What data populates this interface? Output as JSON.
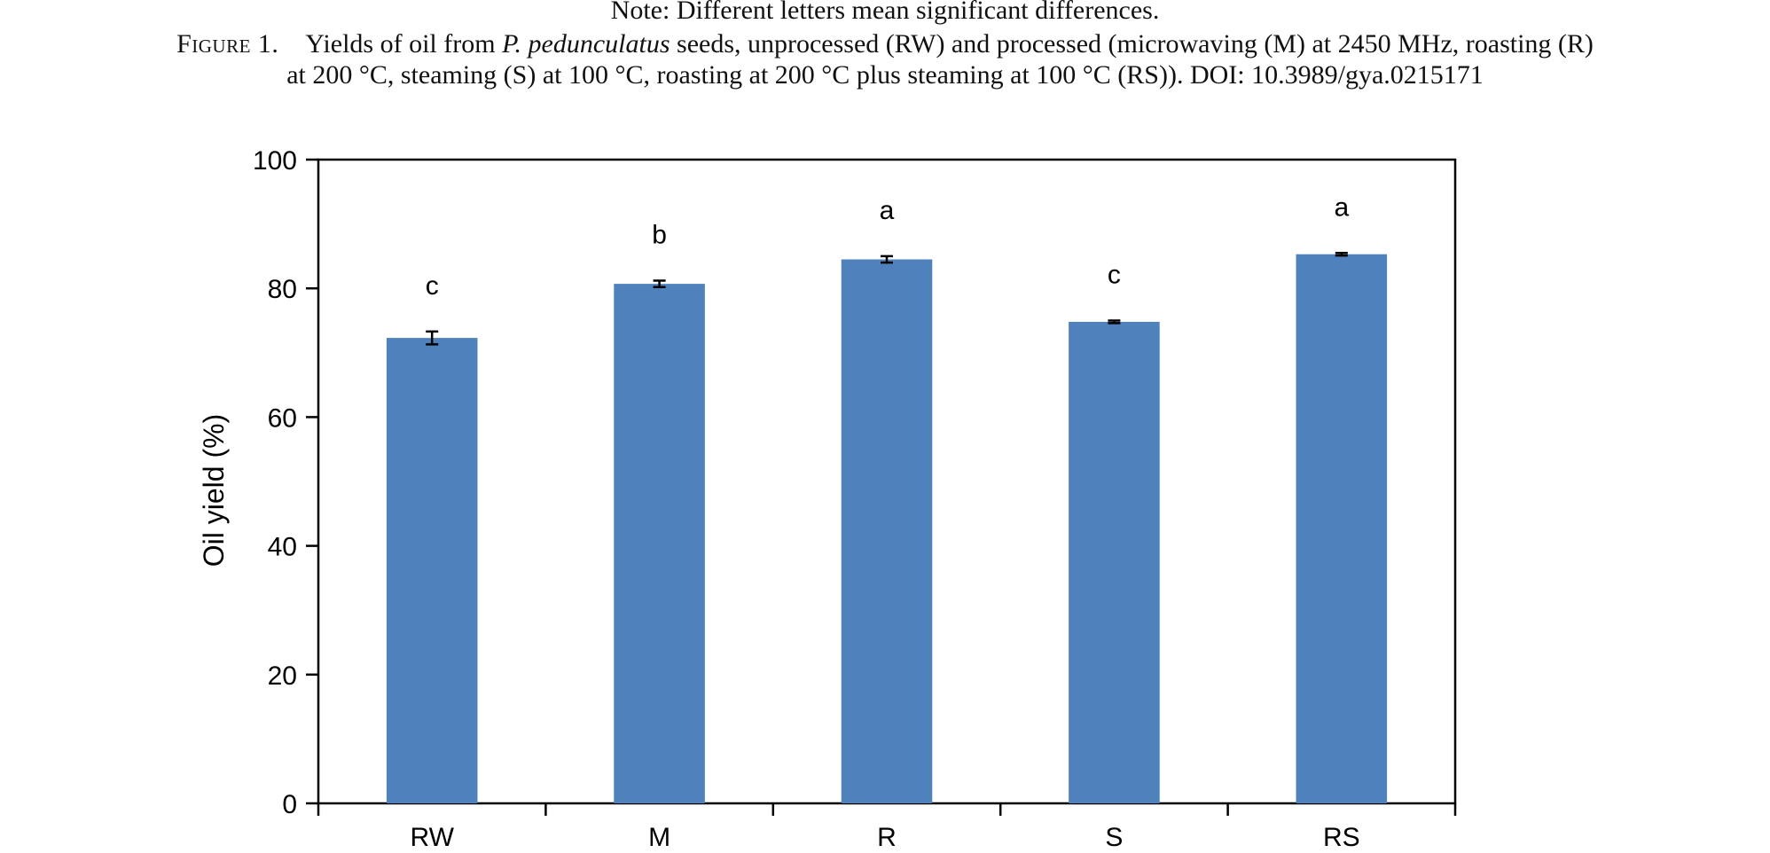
{
  "note": "Note: Different letters mean significant differences.",
  "caption": {
    "label": "Figure 1.",
    "pre": "Yields of oil from ",
    "species": "P. pedunculatus",
    "post": " seeds, unprocessed (RW) and processed (microwaving (M) at 2450 MHz, roasting (R)",
    "line2": "at 200 °C, steaming (S) at 100 °C, roasting at 200 °C plus steaming at 100 °C (RS)). DOI: 10.3989/gya.0215171"
  },
  "chart_data": {
    "type": "bar",
    "title": "",
    "xlabel": "",
    "ylabel": "Oil yield (%)",
    "ylim": [
      0,
      100
    ],
    "yticks": [
      0,
      20,
      40,
      60,
      80,
      100
    ],
    "categories": [
      "RW",
      "M",
      "R",
      "S",
      "RS"
    ],
    "values": [
      72.3,
      80.7,
      84.5,
      74.8,
      85.3
    ],
    "errors": [
      1.0,
      0.5,
      0.5,
      0.2,
      0.2
    ],
    "significance_letters": [
      "c",
      "b",
      "a",
      "c",
      "a"
    ],
    "bar_color": "#4f81bd",
    "grid": false
  }
}
